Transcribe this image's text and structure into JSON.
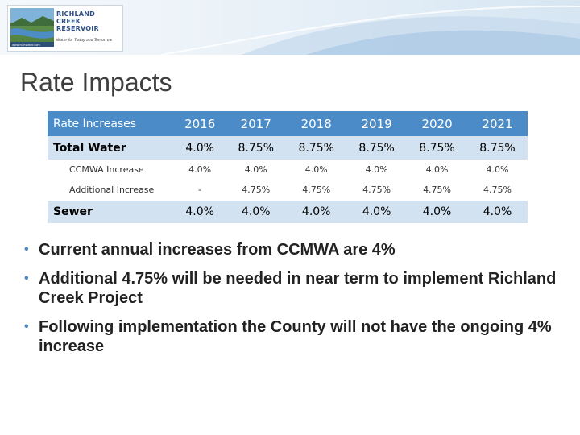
{
  "header": {
    "logo_name_lines": [
      "RICHLAND",
      "CREEK",
      "RESERVOIR"
    ],
    "logo_tagline": "Water for Today and Tomorrow",
    "logo_url_text": "www.RCRwater.com"
  },
  "title": "Rate Impacts",
  "table": {
    "columns": [
      "Rate Increases",
      "2016",
      "2017",
      "2018",
      "2019",
      "2020",
      "2021"
    ],
    "rows": [
      {
        "label": "Total Water",
        "values": [
          "4.0%",
          "8.75%",
          "8.75%",
          "8.75%",
          "8.75%",
          "8.75%"
        ]
      },
      {
        "label": "CCMWA Increase",
        "values": [
          "4.0%",
          "4.0%",
          "4.0%",
          "4.0%",
          "4.0%",
          "4.0%"
        ]
      },
      {
        "label": "Additional Increase",
        "values": [
          "-",
          "4.75%",
          "4.75%",
          "4.75%",
          "4.75%",
          "4.75%"
        ]
      },
      {
        "label": "Sewer",
        "values": [
          "4.0%",
          "4.0%",
          "4.0%",
          "4.0%",
          "4.0%",
          "4.0%"
        ]
      }
    ]
  },
  "bullets": [
    "Current annual increases from CCMWA are 4%",
    "Additional 4.75% will be needed in near term to implement Richland Creek Project",
    "Following implementation the County will not have the ongoing 4% increase"
  ],
  "colors": {
    "header_row": "#4b8bc7",
    "main_row": "#d2e2f1",
    "bullet": "#4b8bc7",
    "title": "#3f3f3f"
  }
}
